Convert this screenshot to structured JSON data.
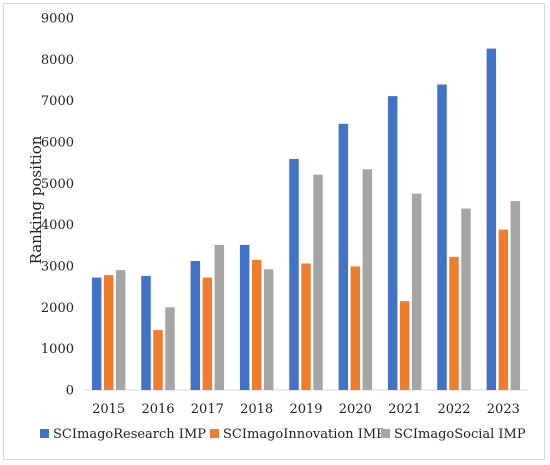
{
  "chart_data": {
    "type": "bar",
    "title": "",
    "xlabel": "",
    "ylabel": "Ranking position",
    "ylim": [
      0,
      9000
    ],
    "yticks": [
      0,
      1000,
      2000,
      3000,
      4000,
      5000,
      6000,
      7000,
      8000,
      9000
    ],
    "grid": false,
    "legend_position": "bottom",
    "categories": [
      "2015",
      "2016",
      "2017",
      "2018",
      "2019",
      "2020",
      "2021",
      "2022",
      "2023"
    ],
    "series": [
      {
        "name": "SCImagoResearch IMP",
        "color": "#4472c4",
        "values": [
          2720,
          2760,
          3120,
          3510,
          5590,
          6440,
          7110,
          7390,
          8260
        ]
      },
      {
        "name": "SCImagoInnovation IMP",
        "color": "#ed7d31",
        "values": [
          2780,
          1450,
          2720,
          3150,
          3060,
          2990,
          2150,
          3220,
          3880
        ]
      },
      {
        "name": "SCImagoSocial IMP",
        "color": "#a5a5a5",
        "values": [
          2900,
          2000,
          3510,
          2920,
          5210,
          5340,
          4750,
          4390,
          4570
        ]
      }
    ]
  }
}
